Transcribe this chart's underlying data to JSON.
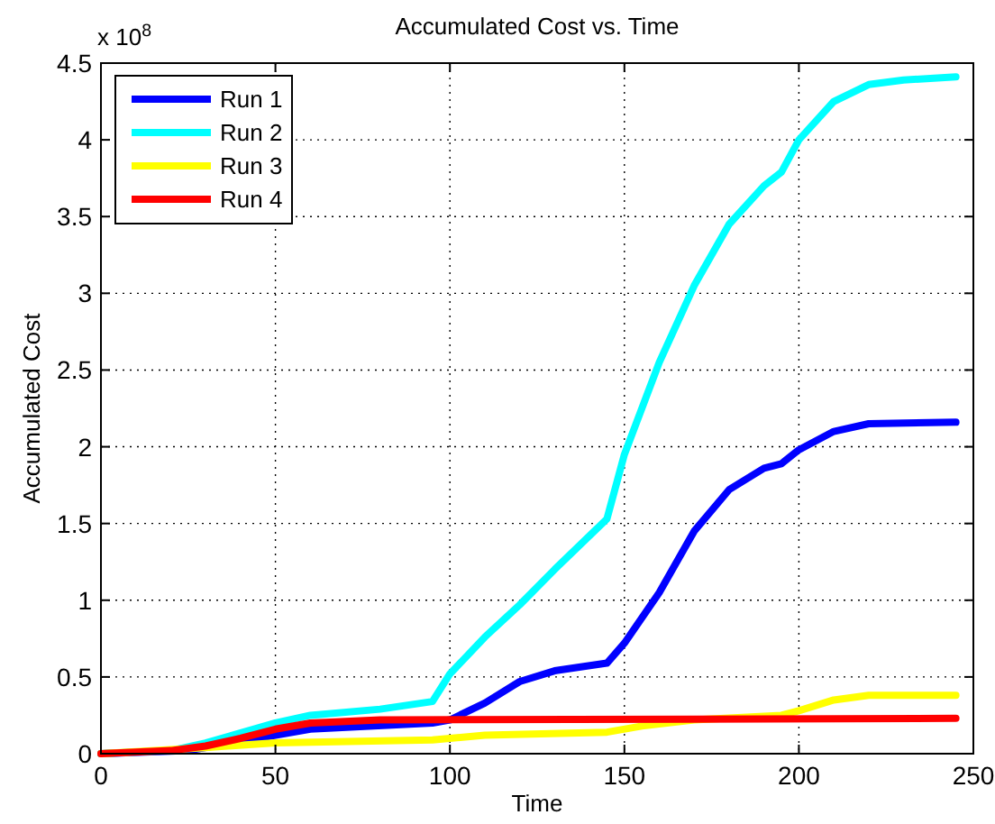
{
  "chart_data": {
    "type": "line",
    "title": "Accumulated Cost vs. Time",
    "xlabel": "Time",
    "ylabel": "Accumulated Cost",
    "annotations": [
      "x 10$^{8}$"
    ],
    "xlim": [
      0,
      250
    ],
    "xticks": [
      0,
      50,
      100,
      150,
      200,
      250
    ],
    "ylim": [
      0,
      4.5
    ],
    "yticks": [
      0,
      0.5,
      1,
      1.5,
      2,
      2.5,
      3,
      3.5,
      4,
      4.5
    ],
    "grid": true,
    "legend": "top left",
    "line_style": "solid",
    "marker": "none",
    "series": [
      {
        "name": "Run 1",
        "color": "#0000ff",
        "x": [
          0,
          25,
          50,
          60,
          95,
          100,
          110,
          120,
          130,
          145,
          150,
          160,
          170,
          180,
          190,
          195,
          200,
          210,
          220,
          245
        ],
        "values": [
          0,
          0.02,
          0.12,
          0.16,
          0.2,
          0.22,
          0.33,
          0.47,
          0.54,
          0.59,
          0.72,
          1.05,
          1.45,
          1.72,
          1.86,
          1.89,
          1.98,
          2.1,
          2.15,
          2.16
        ]
      },
      {
        "name": "Run 2",
        "color": "#00ffff",
        "x": [
          0,
          20,
          30,
          50,
          60,
          80,
          95,
          100,
          110,
          120,
          130,
          145,
          150,
          160,
          170,
          180,
          190,
          195,
          200,
          210,
          220,
          230,
          245
        ],
        "values": [
          0,
          0.02,
          0.07,
          0.2,
          0.25,
          0.29,
          0.34,
          0.52,
          0.76,
          0.97,
          1.2,
          1.53,
          1.95,
          2.55,
          3.05,
          3.45,
          3.7,
          3.79,
          4.0,
          4.25,
          4.36,
          4.39,
          4.41
        ]
      },
      {
        "name": "Run 3",
        "color": "#ffff00",
        "x": [
          0,
          30,
          50,
          95,
          100,
          110,
          145,
          155,
          170,
          195,
          200,
          210,
          220,
          245
        ],
        "values": [
          0,
          0.04,
          0.07,
          0.09,
          0.1,
          0.12,
          0.14,
          0.18,
          0.22,
          0.25,
          0.28,
          0.35,
          0.38,
          0.38
        ]
      },
      {
        "name": "Run 4",
        "color": "#ff0000",
        "x": [
          0,
          20,
          30,
          40,
          50,
          60,
          80,
          245
        ],
        "values": [
          0,
          0.02,
          0.05,
          0.1,
          0.16,
          0.2,
          0.22,
          0.23
        ]
      }
    ]
  }
}
